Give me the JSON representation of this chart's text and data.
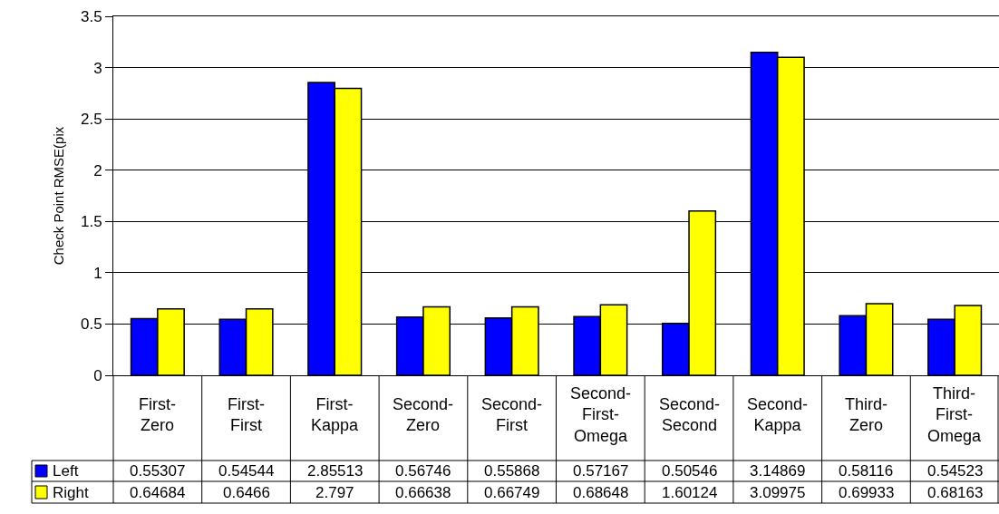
{
  "chart_data": {
    "type": "bar",
    "ylabel": "Check Point RMSE(pix",
    "categories": [
      "First-Zero",
      "First-First",
      "First-Kappa",
      "Second-Zero",
      "Second-First",
      "Second-First-Omega",
      "Second-Second",
      "Second-Kappa",
      "Third-Zero",
      "Third-First-Omega"
    ],
    "series": [
      {
        "name": "Left",
        "color": "#0000ff",
        "values": [
          0.55307,
          0.54544,
          2.85513,
          0.56746,
          0.55868,
          0.57167,
          0.50546,
          3.14869,
          0.58116,
          0.54523
        ]
      },
      {
        "name": "Right",
        "color": "#ffff00",
        "values": [
          0.64684,
          0.6466,
          2.797,
          0.66638,
          0.66749,
          0.68648,
          1.60124,
          3.09975,
          0.69933,
          0.68163
        ]
      }
    ],
    "ylim": [
      0,
      3.5
    ],
    "yticks": [
      0,
      0.5,
      1,
      1.5,
      2,
      2.5,
      3,
      3.5
    ],
    "grid": "y",
    "legend": "bottom left",
    "data_labels": true
  }
}
